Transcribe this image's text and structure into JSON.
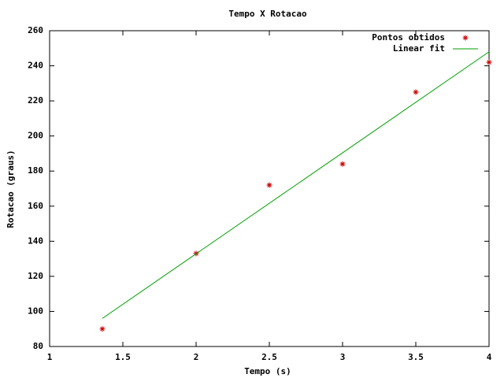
{
  "chart_data": {
    "type": "scatter",
    "title": "Tempo X Rotacao",
    "x_label": "Tempo (s)",
    "y_label": "Rotacao (graus)",
    "xlim": [
      1,
      4
    ],
    "xticks": [
      1,
      1.5,
      2,
      2.5,
      3,
      3.5,
      4
    ],
    "ylim": [
      80,
      260
    ],
    "yticks": [
      80,
      100,
      120,
      140,
      160,
      180,
      200,
      220,
      240,
      260
    ],
    "legend": "top-right",
    "series": [
      {
        "name": "Pontos obtidos",
        "color": "#cc0000",
        "style": "points",
        "x": [
          1.36,
          2,
          2.5,
          3,
          3.5,
          4
        ],
        "values": [
          90,
          133,
          172,
          184,
          225,
          242
        ]
      },
      {
        "name": "Linear fit",
        "color": "#00a000",
        "style": "line",
        "x": [
          1.36,
          4
        ],
        "values": [
          96,
          248
        ]
      }
    ]
  }
}
